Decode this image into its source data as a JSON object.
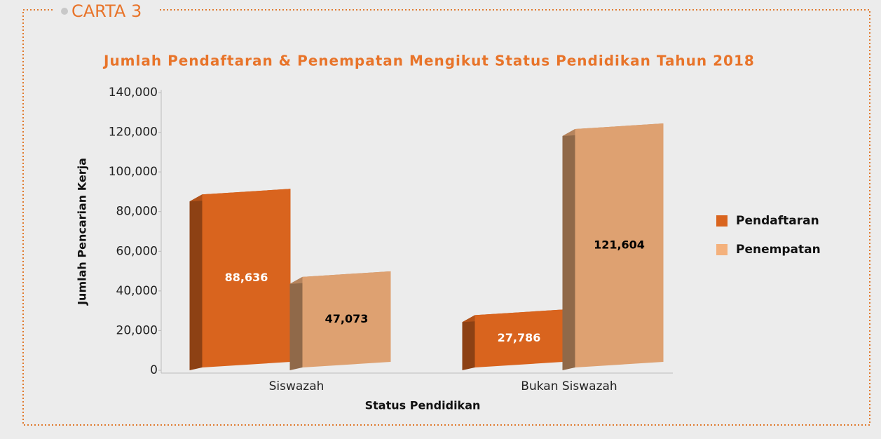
{
  "heading": "CARTA 3",
  "chart_data": {
    "type": "bar3d",
    "title": "Jumlah Pendaftaran & Penempatan Mengikut Status Pendidikan Tahun 2018",
    "x_label": "Status Pendidikan",
    "y_label": "Jumlah Pencarian Kerja",
    "categories": [
      "Siswazah",
      "Bukan Siswazah"
    ],
    "series": [
      {
        "name": "Pendaftaran",
        "color": "#d9641e",
        "label_color": "#ffffff",
        "values": [
          88636,
          27786
        ],
        "value_labels": [
          "88,636",
          "27,786"
        ]
      },
      {
        "name": "Penempatan",
        "color": "#dea171",
        "label_color": "#000000",
        "values": [
          47073,
          121604
        ],
        "value_labels": [
          "47,073",
          "121,604"
        ]
      }
    ],
    "ylim": [
      0,
      140000
    ],
    "yticks": [
      0,
      {
        "value": 20000,
        "label": "20,000"
      },
      {
        "value": 40000,
        "label": "40,000"
      },
      {
        "value": 60000,
        "label": "60,000"
      },
      {
        "value": 80000,
        "label": "80,000"
      },
      {
        "value": 100000,
        "label": "100,000"
      },
      {
        "value": 120000,
        "label": "120,000"
      },
      {
        "value": 140000,
        "label": "140,000"
      }
    ],
    "legend": "right"
  }
}
